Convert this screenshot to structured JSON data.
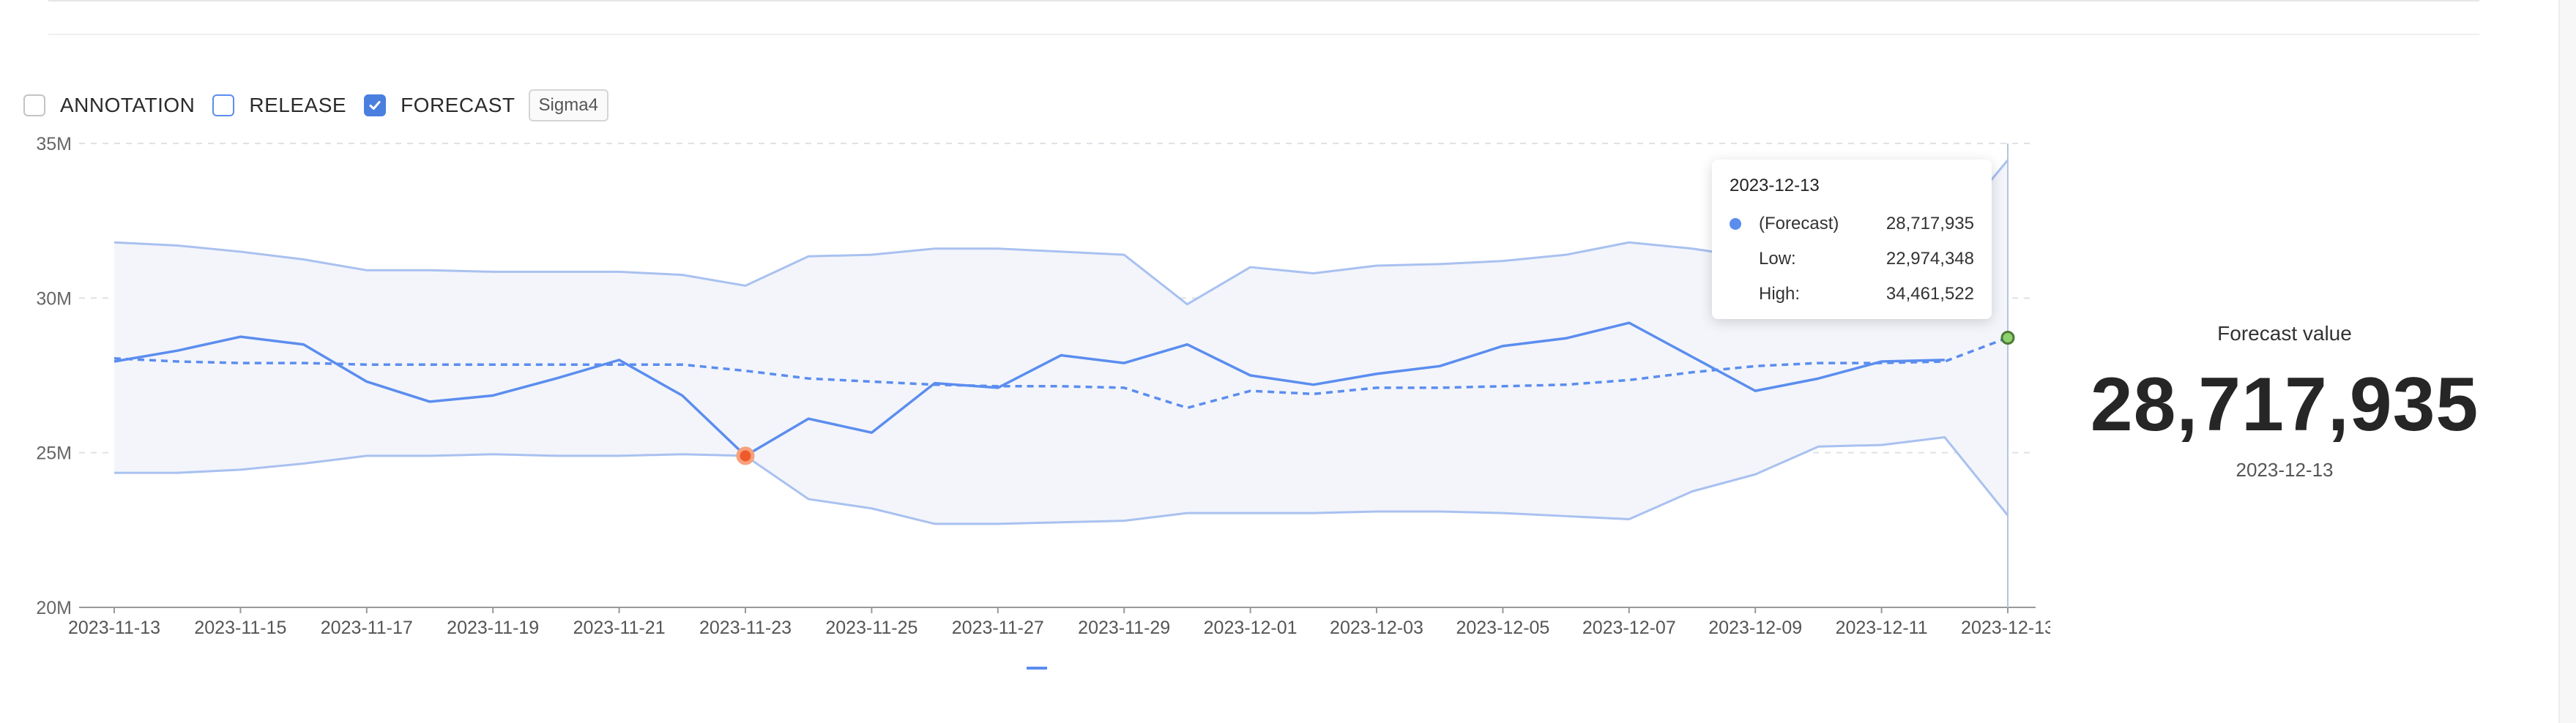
{
  "filters": [
    {
      "label": "ANNOTATION",
      "checked": false
    },
    {
      "label": "RELEASE",
      "checked": false
    },
    {
      "label": "FORECAST",
      "checked": true
    }
  ],
  "model_tag": "Sigma4",
  "tooltip": {
    "date": "2023-12-13",
    "forecast_label": "(Forecast)",
    "forecast_value": "28,717,935",
    "low_label": "Low:",
    "low_value": "22,974,348",
    "high_label": "High:",
    "high_value": "34,461,522"
  },
  "kpi": {
    "label": "Forecast value",
    "value": "28,717,935",
    "date": "2023-12-13"
  },
  "colors": {
    "actual": "#5b8def",
    "bound": "#a9c1f0",
    "band_fill": "#f3f5fb",
    "highlight_point": "#ef5a2a",
    "forecast_point": "#8ed16f"
  },
  "chart_data": {
    "type": "line",
    "title": "",
    "xlabel": "",
    "ylabel": "",
    "ylim": [
      20000000,
      35000000
    ],
    "yticks": [
      {
        "value": 20000000,
        "label": "20M"
      },
      {
        "value": 25000000,
        "label": "25M"
      },
      {
        "value": 30000000,
        "label": "30M"
      },
      {
        "value": 35000000,
        "label": "35M"
      }
    ],
    "grid": true,
    "x": [
      "2023-11-13",
      "2023-11-14",
      "2023-11-15",
      "2023-11-16",
      "2023-11-17",
      "2023-11-18",
      "2023-11-19",
      "2023-11-20",
      "2023-11-21",
      "2023-11-22",
      "2023-11-23",
      "2023-11-24",
      "2023-11-25",
      "2023-11-26",
      "2023-11-27",
      "2023-11-28",
      "2023-11-29",
      "2023-11-30",
      "2023-12-01",
      "2023-12-02",
      "2023-12-03",
      "2023-12-04",
      "2023-12-05",
      "2023-12-06",
      "2023-12-07",
      "2023-12-08",
      "2023-12-09",
      "2023-12-10",
      "2023-12-11",
      "2023-12-12",
      "2023-12-13"
    ],
    "xtick_labels": [
      "2023-11-13",
      "2023-11-15",
      "2023-11-17",
      "2023-11-19",
      "2023-11-21",
      "2023-11-23",
      "2023-11-25",
      "2023-11-27",
      "2023-11-29",
      "2023-12-01",
      "2023-12-03",
      "2023-12-05",
      "2023-12-07",
      "2023-12-09",
      "2023-12-11",
      "2023-12-13"
    ],
    "series": [
      {
        "values": [
          27950000,
          28300000,
          28750000,
          28500000,
          27300000,
          26650000,
          26850000,
          27400000,
          28000000,
          26850000,
          24900000,
          26100000,
          25650000,
          27250000,
          27100000,
          28150000,
          27900000,
          28500000,
          27500000,
          27200000,
          27550000,
          27800000,
          28450000,
          28700000,
          29200000,
          28100000,
          27000000,
          27400000,
          27950000,
          28000000,
          null
        ]
      },
      {
        "values": [
          28050000,
          27950000,
          27900000,
          27900000,
          27850000,
          27850000,
          27850000,
          27850000,
          27850000,
          27850000,
          27650000,
          27400000,
          27300000,
          27200000,
          27150000,
          27150000,
          27100000,
          26450000,
          27000000,
          26900000,
          27100000,
          27100000,
          27150000,
          27200000,
          27350000,
          27600000,
          27800000,
          27900000,
          27900000,
          27950000,
          28717935
        ]
      },
      {
        "values": [
          31800000,
          31700000,
          31500000,
          31250000,
          30900000,
          30900000,
          30850000,
          30850000,
          30850000,
          30750000,
          30400000,
          31350000,
          31400000,
          31600000,
          31600000,
          31500000,
          31400000,
          29800000,
          31000000,
          30800000,
          31050000,
          31100000,
          31200000,
          31400000,
          31800000,
          31600000,
          31300000,
          31500000,
          31800000,
          32000000,
          34461522
        ]
      },
      {
        "values": [
          24350000,
          24350000,
          24450000,
          24650000,
          24900000,
          24900000,
          24950000,
          24900000,
          24900000,
          24950000,
          24900000,
          23500000,
          23200000,
          22700000,
          22700000,
          22750000,
          22800000,
          23050000,
          23050000,
          23050000,
          23100000,
          23100000,
          23050000,
          22950000,
          22850000,
          23750000,
          24300000,
          25200000,
          25250000,
          25500000,
          22974348
        ]
      }
    ],
    "highlights": [
      {
        "x": "2023-11-23",
        "y": 24900000
      },
      {
        "x": "2023-12-13",
        "y": 28717935
      }
    ]
  }
}
